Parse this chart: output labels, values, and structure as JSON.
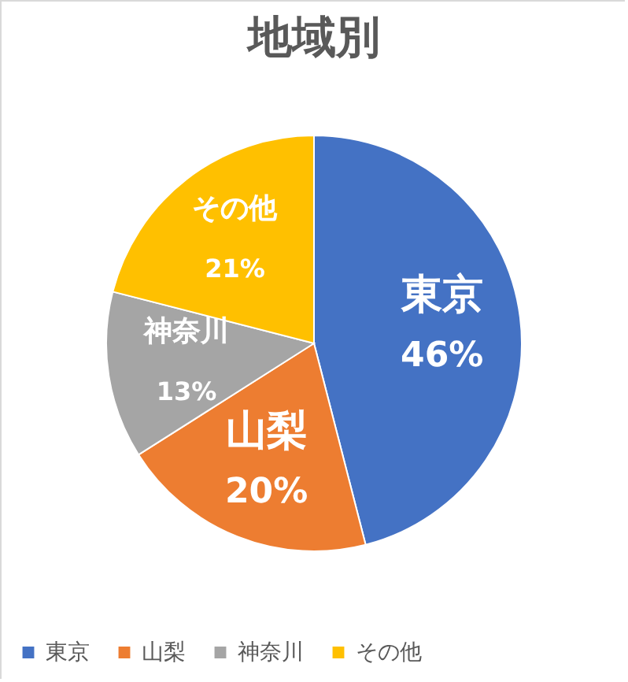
{
  "chart_data": {
    "type": "pie",
    "title": "地域別",
    "categories": [
      "東京",
      "山梨",
      "神奈川",
      "その他"
    ],
    "values": [
      46,
      20,
      13,
      21
    ],
    "value_labels": [
      "46%",
      "20%",
      "13%",
      "21%"
    ],
    "colors": [
      "#4472c4",
      "#ed7d31",
      "#a5a5a5",
      "#ffc000"
    ],
    "legend": "bottom"
  }
}
